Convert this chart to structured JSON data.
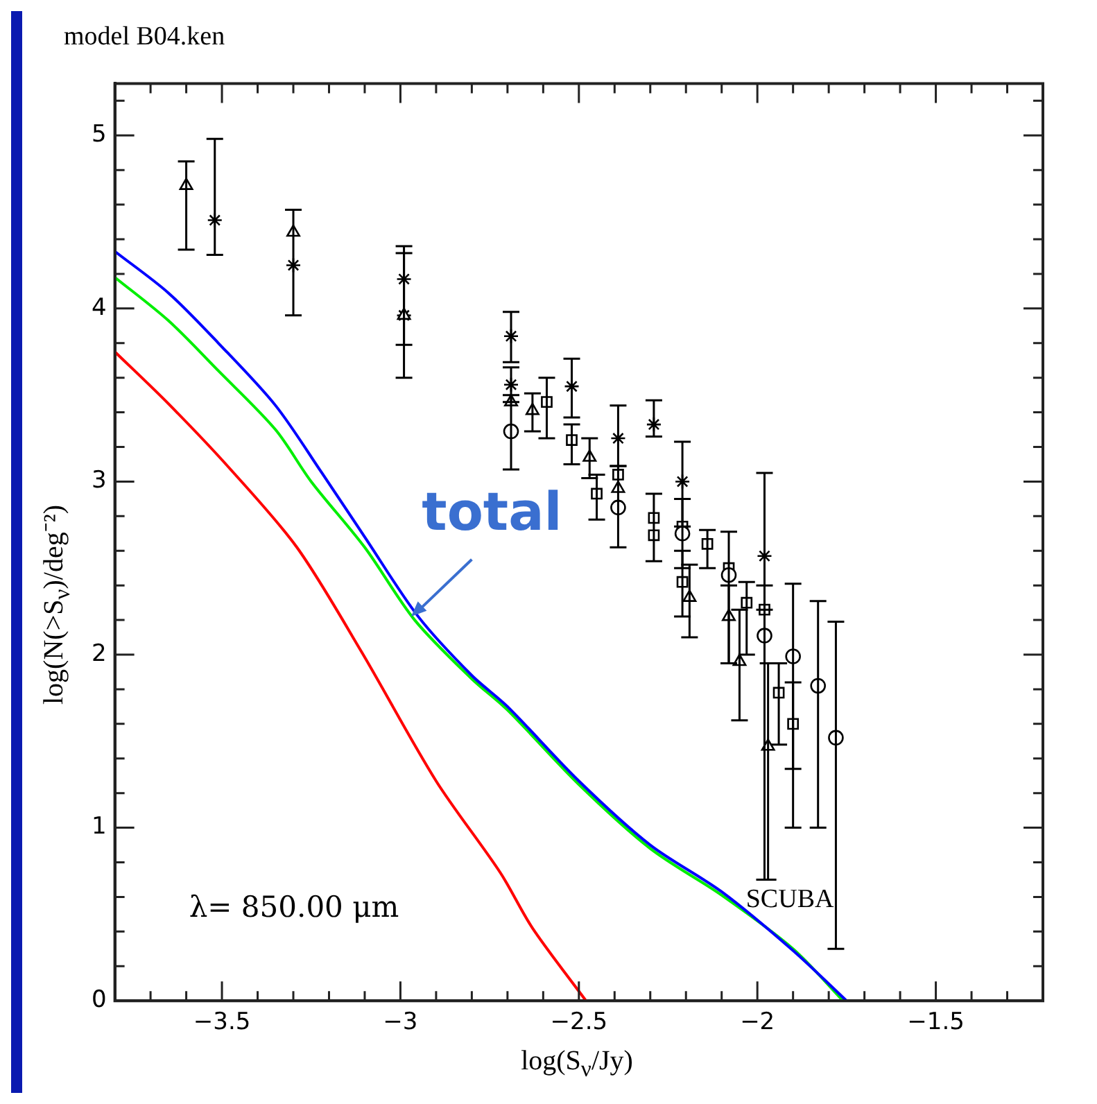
{
  "chart_data": {
    "type": "scatter",
    "title": "model B04.ken",
    "xlabel": "log(S$_{ν}$/Jy)",
    "ylabel": "log(N(>S$_{ν}$)/deg⁻²)",
    "xlim": [
      -3.8,
      -1.2
    ],
    "ylim": [
      0,
      5.3
    ],
    "xticks": [
      {
        "value": -3.7,
        "label": null
      },
      {
        "value": -3.6,
        "label": null
      },
      {
        "value": -3.5,
        "label": "−3.5"
      },
      {
        "value": -3.4,
        "label": null
      },
      {
        "value": -3.3,
        "label": null
      },
      {
        "value": -3.2,
        "label": null
      },
      {
        "value": -3.1,
        "label": null
      },
      {
        "value": -3,
        "label": "−3"
      },
      {
        "value": -2.9,
        "label": null
      },
      {
        "value": -2.8,
        "label": null
      },
      {
        "value": -2.7,
        "label": null
      },
      {
        "value": -2.6,
        "label": null
      },
      {
        "value": -2.5,
        "label": "−2.5"
      },
      {
        "value": -2.4,
        "label": null
      },
      {
        "value": -2.3,
        "label": null
      },
      {
        "value": -2.2,
        "label": null
      },
      {
        "value": -2.1,
        "label": null
      },
      {
        "value": -2,
        "label": "−2"
      },
      {
        "value": -1.9,
        "label": null
      },
      {
        "value": -1.8,
        "label": null
      },
      {
        "value": -1.7,
        "label": null
      },
      {
        "value": -1.6,
        "label": null
      },
      {
        "value": -1.5,
        "label": "−1.5"
      },
      {
        "value": -1.4,
        "label": null
      },
      {
        "value": -1.3,
        "label": null
      }
    ],
    "yticks": [
      0,
      {
        "value": 0.2,
        "label": null
      },
      {
        "value": 0.4,
        "label": null
      },
      {
        "value": 0.6,
        "label": null
      },
      {
        "value": 0.8,
        "label": null
      },
      1,
      {
        "value": 1.2,
        "label": null
      },
      {
        "value": 1.4,
        "label": null
      },
      {
        "value": 1.6,
        "label": null
      },
      {
        "value": 1.8,
        "label": null
      },
      2,
      {
        "value": 2.2,
        "label": null
      },
      {
        "value": 2.4,
        "label": null
      },
      {
        "value": 2.6,
        "label": null
      },
      {
        "value": 2.8,
        "label": null
      },
      3,
      {
        "value": 3.2,
        "label": null
      },
      {
        "value": 3.4,
        "label": null
      },
      {
        "value": 3.6,
        "label": null
      },
      {
        "value": 3.8,
        "label": null
      },
      4,
      {
        "value": 4.2,
        "label": null
      },
      {
        "value": 4.4,
        "label": null
      },
      {
        "value": 4.6,
        "label": null
      },
      {
        "value": 4.8,
        "label": null
      },
      5,
      {
        "value": 5.2,
        "label": null
      }
    ],
    "grid": false,
    "legend": false,
    "annotations": [
      "λ= 850.00 μm",
      "SCUBA",
      {
        "text": "total",
        "x": -2.97,
        "y": 2.22
      }
    ],
    "series": [
      {
        "type": "line",
        "color": "#0000ff",
        "marker": "none",
        "line_style": "solid",
        "x": [
          -3.8,
          -3.65,
          -3.51,
          -3.35,
          -3.22,
          -3.1,
          -2.95,
          -2.8,
          -2.7,
          -2.5,
          -2.3,
          -2.1,
          -1.9,
          -1.75
        ],
        "values": [
          4.33,
          4.09,
          3.8,
          3.44,
          3.05,
          2.68,
          2.22,
          1.88,
          1.7,
          1.27,
          0.9,
          0.63,
          0.29,
          0
        ]
      },
      {
        "type": "line",
        "color": "#00ee00",
        "marker": "none",
        "line_style": "solid",
        "x": [
          -3.8,
          -3.65,
          -3.51,
          -3.35,
          -3.25,
          -3.1,
          -2.96,
          -2.8,
          -2.7,
          -2.5,
          -2.3,
          -2.1,
          -1.9,
          -1.76
        ],
        "values": [
          4.18,
          3.93,
          3.64,
          3.3,
          3.0,
          2.62,
          2.2,
          1.86,
          1.68,
          1.25,
          0.88,
          0.61,
          0.3,
          0
        ]
      },
      {
        "type": "line",
        "color": "#ff0000",
        "marker": "none",
        "line_style": "solid",
        "x": [
          -3.8,
          -3.65,
          -3.48,
          -3.29,
          -3.11,
          -2.9,
          -2.72,
          -2.63,
          -2.48
        ],
        "values": [
          3.75,
          3.45,
          3.08,
          2.62,
          2.02,
          1.27,
          0.74,
          0.42,
          0
        ]
      },
      {
        "type": "scatter",
        "color": "#000000",
        "marker": "triangle",
        "x": [
          -3.6,
          -3.3,
          -2.99,
          -2.69
        ],
        "values": [
          4.71,
          4.44,
          3.96,
          3.46
        ],
        "errors": [
          [
            4.34,
            4.85
          ],
          null,
          null,
          null
        ]
      },
      {
        "type": "scatter",
        "color": "#000000",
        "marker": "cross",
        "x": [
          -3.52,
          -3.3,
          -2.99,
          -2.69,
          -2.29
        ],
        "values": [
          4.51,
          4.25,
          3.96,
          3.56,
          3.33
        ],
        "errors": [
          [
            4.31,
            4.98
          ],
          [
            3.96,
            4.57
          ],
          [
            3.6,
            4.36
          ],
          [
            3.46,
            3.66
          ],
          [
            3.26,
            3.47
          ]
        ]
      },
      {
        "type": "scatter",
        "color": "#000000",
        "marker": "cross",
        "x": [
          -2.99,
          -2.69,
          -2.52,
          -2.39,
          -2.21,
          -1.98
        ],
        "values": [
          4.17,
          3.84,
          3.55,
          3.25,
          3.0,
          2.57
        ],
        "errors": [
          [
            3.79,
            4.32
          ],
          [
            3.69,
            3.98
          ],
          [
            3.37,
            3.71
          ],
          [
            3.09,
            3.44
          ],
          [
            2.74,
            3.23
          ],
          [
            2.26,
            3.05
          ]
        ]
      },
      {
        "type": "scatter",
        "color": "#000000",
        "marker": "circle",
        "x": [
          -2.69,
          -2.39,
          -2.21,
          -2.08,
          -1.98,
          -1.9,
          -1.83,
          -1.78
        ],
        "values": [
          3.29,
          2.85,
          2.7,
          2.46,
          2.11,
          1.99,
          1.82,
          1.52
        ],
        "errors": [
          [
            3.07,
            3.5
          ],
          [
            2.62,
            3.09
          ],
          [
            2.5,
            2.9
          ],
          [
            1.95,
            2.71
          ],
          [
            0.7,
            2.4
          ],
          [
            1.0,
            2.41
          ],
          [
            1.0,
            2.31
          ],
          [
            0.3,
            2.19
          ]
        ]
      },
      {
        "type": "scatter",
        "color": "#000000",
        "marker": "triangle",
        "x": [
          -2.63,
          -2.47,
          -2.39,
          -2.19,
          -2.08,
          -2.05,
          -1.97
        ],
        "values": [
          3.41,
          3.14,
          2.96,
          2.33,
          2.22,
          1.96,
          1.47
        ],
        "errors": [
          [
            3.29,
            3.51
          ],
          [
            3.02,
            3.25
          ],
          null,
          [
            2.1,
            2.52
          ],
          [
            1.95,
            2.4
          ],
          [
            1.62,
            2.26
          ],
          [
            0.7,
            1.95
          ]
        ]
      },
      {
        "type": "scatter",
        "color": "#000000",
        "marker": "square",
        "x": [
          -2.59,
          -2.52,
          -2.45,
          -2.39,
          -2.29,
          -2.29,
          -2.21
        ],
        "values": [
          3.46,
          3.24,
          2.93,
          3.04,
          2.79,
          2.69,
          2.42
        ],
        "errors": [
          [
            3.25,
            3.6
          ],
          [
            3.1,
            3.33
          ],
          [
            2.78,
            3.04
          ],
          null,
          [
            2.54,
            2.93
          ],
          null,
          [
            2.22,
            2.6
          ]
        ]
      },
      {
        "type": "scatter",
        "color": "#000000",
        "marker": "square",
        "x": [
          -2.21,
          -2.14,
          -2.08,
          -2.03,
          -1.98,
          -1.94,
          -1.9
        ],
        "values": [
          2.74,
          2.64,
          2.5,
          2.3,
          2.26,
          1.78,
          1.6
        ],
        "errors": [
          null,
          [
            2.5,
            2.72
          ],
          null,
          [
            2.0,
            2.42
          ],
          null,
          [
            1.48,
            1.95
          ],
          [
            1.34,
            1.84
          ]
        ]
      }
    ]
  }
}
